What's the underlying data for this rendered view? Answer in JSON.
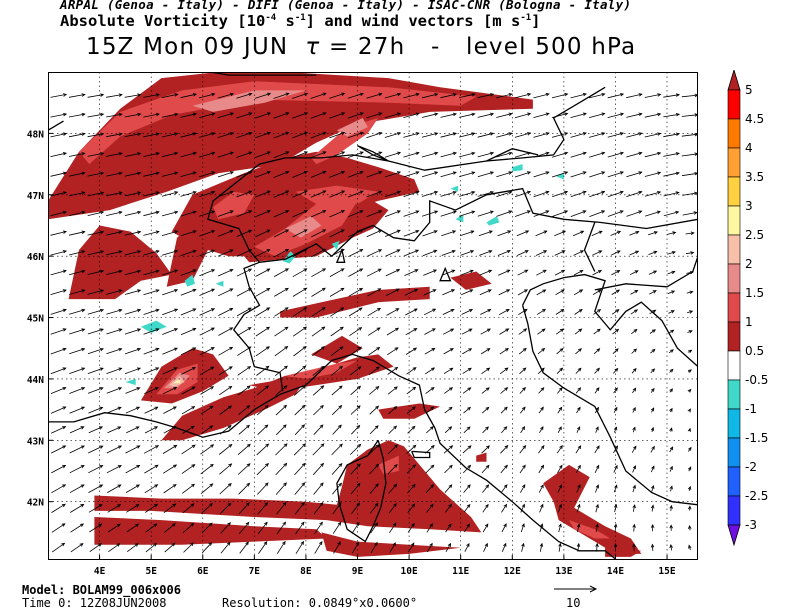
{
  "header": {
    "institutions": "ARPAL (Genoa - Italy)  -  DIFI (Genoa - Italy)  -  ISAC-CNR (Bologna - Italy)",
    "title_prefix": "Absolute Vorticity [10",
    "title_exp1": "-4",
    "title_mid": " s",
    "title_exp2": "-1",
    "title_mid2": "] and wind vectors [m s",
    "title_exp3": "-1",
    "title_suffix": "]",
    "valid_time": "15Z Mon 09 JUN",
    "tau_symbol": "τ",
    "tau_value": "= 27h",
    "dash": "-",
    "level": "level 500 hPa"
  },
  "map_data": {
    "lon_range": [
      3.0,
      15.6
    ],
    "lat_range": [
      41.05,
      49.0
    ],
    "lat_labels": [
      "48N",
      "47N",
      "46N",
      "45N",
      "44N",
      "43N",
      "42N"
    ],
    "lon_labels": [
      "4E",
      "5E",
      "6E",
      "7E",
      "8E",
      "9E",
      "10E",
      "11E",
      "12E",
      "13E",
      "14E",
      "15E"
    ],
    "lat_values": [
      48,
      47,
      46,
      45,
      44,
      43,
      42
    ],
    "lon_values": [
      4,
      5,
      6,
      7,
      8,
      9,
      10,
      11,
      12,
      13,
      14,
      15
    ],
    "colors": {
      "v_0_5": "#b22222",
      "v_1": "#e04a4a",
      "v_1_5": "#e88a8a",
      "v_2": "#f4b8a8",
      "v_2_5": "#fdf2b0",
      "neg_0_5": "#40d8c8",
      "coast": "#000000",
      "grid": "#000000"
    }
  },
  "legend": {
    "labels": [
      "5",
      "4.5",
      "4",
      "3.5",
      "3",
      "2.5",
      "2",
      "1.5",
      "1",
      "0.5",
      "-0.5",
      "-1",
      "-1.5",
      "-2",
      "-2.5",
      "-3"
    ],
    "colors": [
      "#c40000",
      "#ff0000",
      "#ff7800",
      "#ffa030",
      "#ffd040",
      "#fff8a0",
      "#f8c0a8",
      "#e88a8a",
      "#e04a4a",
      "#b22222",
      "#ffffff",
      "#40d8c8",
      "#10b8e8",
      "#1090f0",
      "#2060ff",
      "#3030ff"
    ],
    "top_color": "#b22222",
    "bottom_color": "#7010e0"
  },
  "footer": {
    "model": "Model: BOLAM99_006x006",
    "time0": "Time 0: 12Z08JUN2008",
    "resolution": "Resolution: 0.0849°x0.0600°",
    "ref_vector_label": "10"
  }
}
